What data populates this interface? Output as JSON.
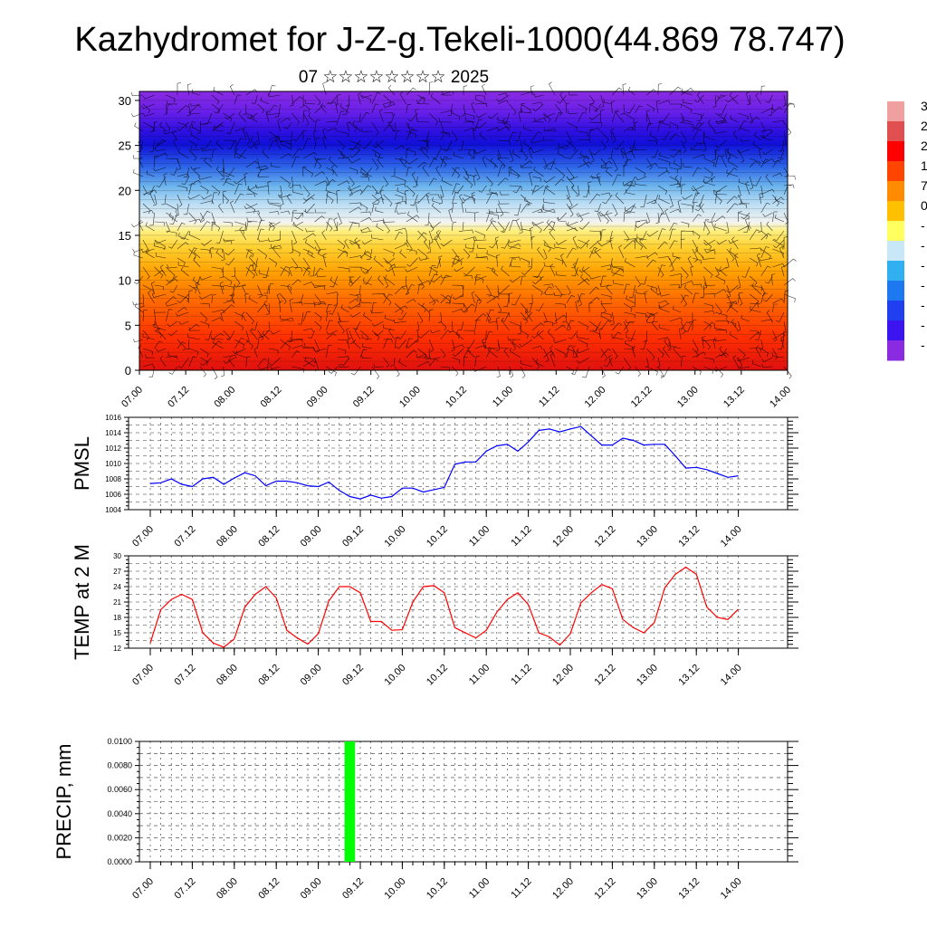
{
  "title": "Kazhydromet for J-Z-g.Tekeli-1000(44.869 78.747)",
  "subtitle": "07 ☆☆☆☆☆☆☆☆ 2025",
  "colors": {
    "pmsl_line": "#0000ff",
    "temp_line": "#ff0000",
    "precip_bar": "#00ff00"
  },
  "chart_data": [
    {
      "type": "heatmap",
      "name": "temperature-profile-with-wind-barbs",
      "x_tick_labels": [
        "07.00",
        "07.12",
        "08.00",
        "08.12",
        "09.00",
        "09.12",
        "10.00",
        "10.12",
        "11.00",
        "11.12",
        "12.00",
        "12.12",
        "13.00",
        "13.12",
        "14.00"
      ],
      "y_ticks": [
        0,
        5,
        10,
        15,
        20,
        25,
        30
      ],
      "ylim": [
        0,
        31
      ],
      "colorbar_labels": [
        "3",
        "2",
        "2",
        "1",
        "7",
        "0",
        "-",
        "-",
        "-",
        "-",
        "-",
        "-",
        "-"
      ],
      "colorbar_colors": [
        "#f0a0a0",
        "#e05050",
        "#ff0000",
        "#ff4500",
        "#ff8c00",
        "#ffc000",
        "#ffff60",
        "#c8e8f8",
        "#30b0f0",
        "#1e78f0",
        "#2040f0",
        "#3c14f0",
        "#8a2be2"
      ]
    },
    {
      "type": "line",
      "name": "PMSL",
      "ylabel": "PMSL",
      "x_tick_labels": [
        "07.00",
        "07.12",
        "08.00",
        "08.12",
        "09.00",
        "09.12",
        "10.00",
        "10.12",
        "11.00",
        "11.12",
        "12.00",
        "12.12",
        "13.00",
        "13.12",
        "14.00"
      ],
      "y_ticks": [
        1004,
        1006,
        1008,
        1010,
        1012,
        1014,
        1016
      ],
      "ylim": [
        1004,
        1016
      ],
      "x_step_hours": 3,
      "values": [
        1007.4,
        1007.5,
        1008.0,
        1007.3,
        1007.0,
        1008.0,
        1008.2,
        1007.3,
        1008.1,
        1008.8,
        1008.4,
        1007.1,
        1007.7,
        1007.7,
        1007.5,
        1007.1,
        1007.0,
        1007.6,
        1006.5,
        1005.7,
        1005.4,
        1005.9,
        1005.5,
        1005.7,
        1006.8,
        1006.8,
        1006.3,
        1006.6,
        1006.9,
        1009.9,
        1010.2,
        1010.2,
        1011.6,
        1012.3,
        1012.5,
        1011.6,
        1012.8,
        1014.3,
        1014.5,
        1014.1,
        1014.5,
        1014.8,
        1013.6,
        1012.4,
        1012.4,
        1013.3,
        1013.0,
        1012.4,
        1012.5,
        1012.5,
        1011.0,
        1009.4,
        1009.5,
        1009.2,
        1008.7,
        1008.2,
        1008.4
      ]
    },
    {
      "type": "line",
      "name": "TEMP at 2 M",
      "ylabel": "TEMP at 2 M",
      "x_tick_labels": [
        "07.00",
        "07.12",
        "08.00",
        "08.12",
        "09.00",
        "09.12",
        "10.00",
        "10.12",
        "11.00",
        "11.12",
        "12.00",
        "12.12",
        "13.00",
        "13.12",
        "14.00"
      ],
      "y_ticks": [
        12,
        15,
        18,
        21,
        24,
        27,
        30
      ],
      "ylim": [
        12,
        30
      ],
      "x_step_hours": 3,
      "values": [
        13.0,
        19.5,
        21.5,
        22.5,
        21.5,
        15.0,
        13.0,
        12.2,
        13.8,
        20.0,
        22.5,
        24.0,
        21.8,
        15.5,
        14.0,
        12.8,
        14.8,
        21.2,
        24.0,
        24.0,
        22.8,
        17.2,
        17.2,
        15.5,
        15.6,
        21.0,
        24.0,
        24.2,
        22.8,
        16.0,
        15.0,
        14.0,
        15.5,
        19.0,
        21.5,
        22.8,
        20.5,
        15.0,
        14.2,
        12.6,
        14.8,
        20.8,
        22.8,
        24.4,
        23.6,
        17.6,
        16.0,
        15.0,
        17.0,
        23.8,
        26.4,
        27.8,
        26.4,
        20.0,
        18.0,
        17.6,
        19.6
      ]
    },
    {
      "type": "bar",
      "name": "PRECIP, mm",
      "ylabel": "PRECIP, mm",
      "x_tick_labels": [
        "07.00",
        "07.12",
        "08.00",
        "08.12",
        "09.00",
        "09.12",
        "10.00",
        "10.12",
        "11.00",
        "11.12",
        "12.00",
        "12.12",
        "13.00",
        "13.12",
        "14.00"
      ],
      "y_tick_labels": [
        "0.0000",
        "0.0020",
        "0.0040",
        "0.0060",
        "0.0080",
        "0.0100"
      ],
      "ylim": [
        0,
        0.01
      ],
      "x_step_hours": 3,
      "values": [
        0,
        0,
        0,
        0,
        0,
        0,
        0,
        0,
        0,
        0,
        0,
        0,
        0,
        0,
        0,
        0,
        0,
        0,
        0,
        0.01,
        0,
        0,
        0,
        0,
        0,
        0,
        0,
        0,
        0,
        0,
        0,
        0,
        0,
        0,
        0,
        0,
        0,
        0,
        0,
        0,
        0,
        0,
        0,
        0,
        0,
        0,
        0,
        0,
        0,
        0,
        0,
        0,
        0,
        0,
        0,
        0,
        0
      ]
    }
  ]
}
